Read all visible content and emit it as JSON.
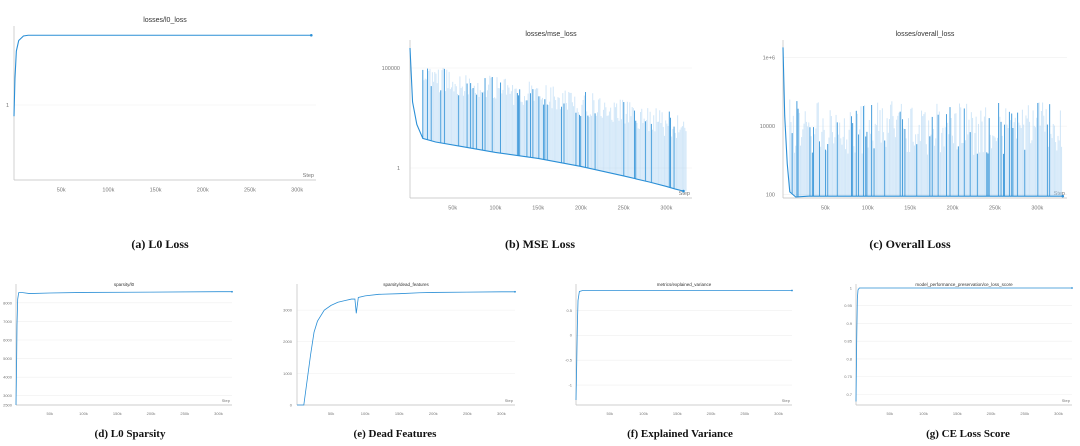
{
  "chart_data": [
    {
      "id": "a",
      "type": "line",
      "title": "losses/l0_loss",
      "x_axis_label": "Step",
      "x_ticks": [
        "50k",
        "100k",
        "150k",
        "200k",
        "250k",
        "300k"
      ],
      "x_tick_values": [
        50000,
        100000,
        150000,
        200000,
        250000,
        300000
      ],
      "x_range": [
        0,
        320000
      ],
      "y_ticks": [
        "1"
      ],
      "y_tick_values": [
        1
      ],
      "y_range": [
        0,
        2
      ],
      "series": [
        {
          "x": [
            0,
            1000,
            2500,
            5000,
            10000,
            15000,
            20000,
            50000,
            100000,
            150000,
            200000,
            250000,
            315000
          ],
          "y": [
            0.85,
            1.35,
            1.72,
            1.86,
            1.92,
            1.93,
            1.93,
            1.93,
            1.93,
            1.93,
            1.93,
            1.93,
            1.93
          ]
        }
      ],
      "caption": "(a) L0 Loss"
    },
    {
      "id": "b",
      "type": "line",
      "title": "losses/mse_loss",
      "x_axis_label": "Step",
      "y_scale": "log",
      "x_ticks": [
        "50k",
        "100k",
        "150k",
        "200k",
        "250k",
        "300k"
      ],
      "x_tick_values": [
        50000,
        100000,
        150000,
        200000,
        250000,
        300000
      ],
      "x_range": [
        0,
        330000
      ],
      "y_ticks": [
        "100000",
        "1"
      ],
      "y_tick_values": [
        100000,
        1
      ],
      "y_range_log10": [
        -1.5,
        6.2
      ],
      "series": [
        {
          "x": [
            0,
            3000,
            8000,
            15000,
            30000,
            60000,
            100000,
            150000,
            200000,
            250000,
            280000,
            300000,
            310000,
            320000
          ],
          "y": [
            1000000,
            2000,
            150,
            30,
            20,
            12,
            6,
            3,
            1.2,
            0.4,
            0.2,
            0.12,
            0.09,
            0.07
          ]
        }
      ],
      "caption": "(b) MSE Loss"
    },
    {
      "id": "c",
      "type": "line",
      "title": "losses/overall_loss",
      "x_axis_label": "Step",
      "y_scale": "log",
      "x_ticks": [
        "50k",
        "100k",
        "150k",
        "200k",
        "250k",
        "300k"
      ],
      "x_tick_values": [
        50000,
        100000,
        150000,
        200000,
        250000,
        300000
      ],
      "x_range": [
        0,
        335000
      ],
      "y_ticks": [
        "1e+6",
        "10000",
        "100"
      ],
      "y_tick_values": [
        1000000,
        10000,
        100
      ],
      "y_range_log10": [
        1.9,
        6.4
      ],
      "series": [
        {
          "x": [
            0,
            2000,
            5000,
            8000,
            15000,
            30000,
            100000,
            200000,
            300000,
            330000
          ],
          "y": [
            2000000,
            20000,
            800,
            120,
            85,
            90,
            90,
            90,
            90,
            90
          ]
        }
      ],
      "caption": "(c) Overall Loss"
    },
    {
      "id": "d",
      "type": "line",
      "title": "sparsity/l0",
      "x_axis_label": "Step",
      "x_ticks": [
        "50k",
        "100k",
        "150k",
        "200k",
        "250k",
        "300k"
      ],
      "x_tick_values": [
        50000,
        100000,
        150000,
        200000,
        250000,
        300000
      ],
      "x_range": [
        0,
        320000
      ],
      "y_ticks": [
        "8000",
        "7000",
        "6000",
        "5000",
        "4000",
        "3000",
        "2500"
      ],
      "y_tick_values": [
        8000,
        7000,
        6000,
        5000,
        4000,
        3000,
        2500
      ],
      "y_range": [
        2500,
        8800
      ],
      "series": [
        {
          "x": [
            0,
            800,
            1500,
            2500,
            4000,
            6000,
            10000,
            20000,
            50000,
            100000,
            200000,
            300000,
            320000
          ],
          "y": [
            2500,
            4500,
            6800,
            8200,
            8550,
            8550,
            8550,
            8500,
            8530,
            8560,
            8580,
            8600,
            8600
          ]
        }
      ],
      "caption": "(d) L0 Sparsity"
    },
    {
      "id": "e",
      "type": "line",
      "title": "sparsity/dead_features",
      "x_axis_label": "Step",
      "x_ticks": [
        "50k",
        "100k",
        "150k",
        "200k",
        "250k",
        "300k"
      ],
      "x_tick_values": [
        50000,
        100000,
        150000,
        200000,
        250000,
        300000
      ],
      "x_range": [
        0,
        320000
      ],
      "y_ticks": [
        "3000",
        "2000",
        "1000",
        "0"
      ],
      "y_tick_values": [
        3000,
        2000,
        1000,
        0
      ],
      "y_range": [
        0,
        3700
      ],
      "series": [
        {
          "x": [
            0,
            10000,
            20000,
            25000,
            30000,
            40000,
            50000,
            60000,
            70000,
            80000,
            85000,
            87000,
            90000,
            100000,
            120000,
            150000,
            180000,
            200000,
            250000,
            300000,
            320000
          ],
          "y": [
            0,
            0,
            1600,
            2300,
            2650,
            3000,
            3150,
            3250,
            3300,
            3350,
            3350,
            2900,
            3400,
            3450,
            3500,
            3520,
            3550,
            3560,
            3570,
            3580,
            3580
          ]
        }
      ],
      "caption": "(e) Dead Features"
    },
    {
      "id": "f",
      "type": "line",
      "title": "metrics/explained_variance",
      "x_axis_label": "Step",
      "x_ticks": [
        "50k",
        "100k",
        "150k",
        "200k",
        "250k",
        "300k"
      ],
      "x_tick_values": [
        50000,
        100000,
        150000,
        200000,
        250000,
        300000
      ],
      "x_range": [
        0,
        320000
      ],
      "y_ticks": [
        "0.5",
        "0",
        "-0.5",
        "-1"
      ],
      "y_tick_values": [
        0.5,
        0,
        -0.5,
        -1
      ],
      "y_range": [
        -1.4,
        0.95
      ],
      "series": [
        {
          "x": [
            0,
            1000,
            2000,
            3000,
            5000,
            10000,
            20000,
            100000,
            200000,
            320000
          ],
          "y": [
            -1.3,
            -0.6,
            0.2,
            0.7,
            0.88,
            0.9,
            0.9,
            0.9,
            0.9,
            0.9
          ]
        }
      ],
      "caption": "(f) Explained Variance"
    },
    {
      "id": "g",
      "type": "line",
      "title": "model_performance_preservation/ce_loss_score",
      "x_axis_label": "Step",
      "x_ticks": [
        "50k",
        "100k",
        "150k",
        "200k",
        "250k",
        "300k"
      ],
      "x_tick_values": [
        50000,
        100000,
        150000,
        200000,
        250000,
        300000
      ],
      "x_range": [
        0,
        320000
      ],
      "y_ticks": [
        "1",
        "0.95",
        "0.9",
        "0.85",
        "0.8",
        "0.75",
        "0.7"
      ],
      "y_tick_values": [
        1,
        0.95,
        0.9,
        0.85,
        0.8,
        0.75,
        0.7
      ],
      "y_range": [
        0.67,
        1.0
      ],
      "series": [
        {
          "x": [
            0,
            1000,
            2000,
            3000,
            5000,
            10000,
            100000,
            320000
          ],
          "y": [
            0.68,
            0.85,
            0.97,
            0.995,
            1,
            1,
            1,
            1
          ]
        }
      ],
      "caption": "(g) CE Loss Score"
    }
  ],
  "colors": {
    "line": "#2b8fd6",
    "band": "#a9d2f2",
    "axis": "#bfbfbf",
    "grid": "#efefef"
  }
}
